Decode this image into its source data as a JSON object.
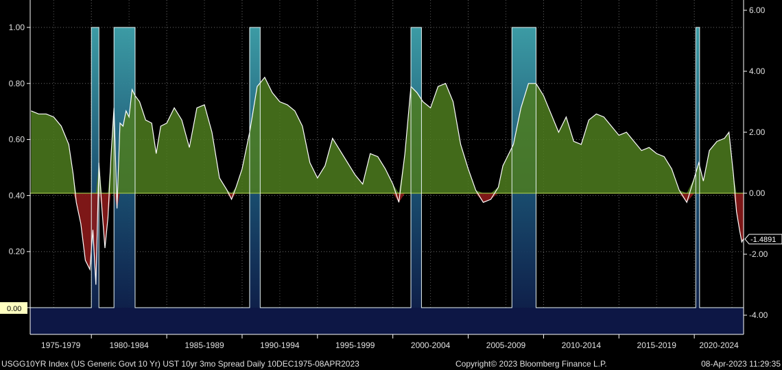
{
  "chart_data": {
    "type": "line",
    "title": "",
    "left_axis": {
      "range": [
        0.0,
        1.0
      ],
      "ticks": [
        "0.00",
        "0.20",
        "0.40",
        "0.60",
        "0.80",
        "1.00"
      ]
    },
    "right_axis": {
      "range": [
        -4.0,
        6.0
      ],
      "ticks": [
        "-4.00",
        "-2.00",
        "0.00",
        "2.00",
        "4.00",
        "6.00"
      ]
    },
    "x_range": [
      1975.94,
      2023.27
    ],
    "x_ticks": [
      "1975-1979",
      "1980-1984",
      "1985-1989",
      "1990-1994",
      "1995-1999",
      "2000-2004",
      "2005-2009",
      "2010-2014",
      "2015-2019",
      "2020-2024"
    ],
    "grid": true,
    "colors": {
      "positive": "#4e7d1e",
      "negative": "#8b1a1a",
      "line": "#ffffff",
      "recession_top": "#3fa3ad",
      "recession_bottom": "#0d1745",
      "zero_line": "#9ec04a",
      "badge": "#ffffc0"
    },
    "series": [
      {
        "name": "",
        "axis": "right",
        "x": [
          1976.0,
          1976.5,
          1977.0,
          1977.5,
          1978.0,
          1978.5,
          1978.8,
          1979.0,
          1979.3,
          1979.6,
          1979.9,
          1980.1,
          1980.3,
          1980.5,
          1980.7,
          1980.9,
          1981.1,
          1981.3,
          1981.5,
          1981.7,
          1981.9,
          1982.1,
          1982.3,
          1982.5,
          1982.7,
          1982.9,
          1983.2,
          1983.6,
          1984.0,
          1984.3,
          1984.6,
          1985.0,
          1985.5,
          1986.0,
          1986.5,
          1987.0,
          1987.5,
          1988.0,
          1988.5,
          1989.0,
          1989.3,
          1989.6,
          1990.0,
          1990.5,
          1991.0,
          1991.5,
          1992.0,
          1992.5,
          1993.0,
          1993.5,
          1994.0,
          1994.5,
          1995.0,
          1995.5,
          1996.0,
          1996.5,
          1997.0,
          1997.5,
          1998.0,
          1998.5,
          1999.0,
          1999.5,
          2000.0,
          2000.4,
          2000.8,
          2001.2,
          2001.6,
          2002.0,
          2002.5,
          2003.0,
          2003.5,
          2004.0,
          2004.5,
          2005.0,
          2005.5,
          2006.0,
          2006.5,
          2007.0,
          2007.3,
          2007.6,
          2008.0,
          2008.5,
          2009.0,
          2009.5,
          2010.0,
          2010.5,
          2011.0,
          2011.5,
          2012.0,
          2012.5,
          2013.0,
          2013.5,
          2014.0,
          2014.5,
          2015.0,
          2015.5,
          2016.0,
          2016.5,
          2017.0,
          2017.5,
          2018.0,
          2018.5,
          2019.0,
          2019.5,
          2020.0,
          2020.3,
          2020.6,
          2021.0,
          2021.5,
          2022.0,
          2022.3,
          2022.6,
          2022.8,
          2023.0,
          2023.15,
          2023.27
        ],
        "y": [
          2.7,
          2.6,
          2.6,
          2.5,
          2.2,
          1.6,
          0.6,
          -0.3,
          -1.0,
          -2.2,
          -2.5,
          -1.2,
          -3.0,
          1.0,
          -0.5,
          -1.8,
          -0.8,
          1.2,
          2.8,
          -0.5,
          2.3,
          2.2,
          2.7,
          2.5,
          3.4,
          3.2,
          3.0,
          2.4,
          2.3,
          1.3,
          2.2,
          2.3,
          2.8,
          2.4,
          1.5,
          2.8,
          2.9,
          2.0,
          0.5,
          0.1,
          -0.2,
          0.2,
          0.8,
          2.0,
          3.5,
          3.8,
          3.3,
          3.0,
          2.9,
          2.7,
          2.2,
          1.0,
          0.5,
          0.9,
          1.8,
          1.4,
          1.0,
          0.6,
          0.3,
          1.3,
          1.2,
          0.8,
          0.3,
          -0.3,
          1.3,
          3.5,
          3.3,
          3.0,
          2.8,
          3.5,
          3.6,
          3.0,
          1.6,
          0.8,
          0.1,
          -0.3,
          -0.2,
          0.2,
          0.9,
          1.2,
          1.6,
          2.8,
          3.6,
          3.6,
          3.2,
          2.6,
          2.0,
          2.5,
          1.7,
          1.6,
          2.4,
          2.6,
          2.5,
          2.2,
          1.9,
          2.0,
          1.7,
          1.4,
          1.5,
          1.3,
          1.2,
          0.8,
          0.1,
          -0.3,
          0.5,
          1.0,
          0.4,
          1.4,
          1.7,
          1.8,
          2.0,
          0.6,
          -0.6,
          -1.2,
          -1.6,
          -1.4891
        ]
      },
      {
        "name": "",
        "axis": "left",
        "type": "step",
        "x": [
          1975.94,
          1980.0,
          1980.0,
          1980.5,
          1980.5,
          1981.5,
          1981.5,
          1982.9,
          1982.9,
          1990.5,
          1990.5,
          1991.2,
          1991.2,
          2001.2,
          2001.2,
          2001.9,
          2001.9,
          2007.9,
          2007.9,
          2009.5,
          2009.5,
          2020.1,
          2020.1,
          2020.35,
          2020.35,
          2023.27
        ],
        "y": [
          0,
          0,
          1,
          1,
          0,
          0,
          1,
          1,
          0,
          0,
          1,
          1,
          0,
          0,
          1,
          1,
          0,
          0,
          1,
          1,
          0,
          0,
          1,
          1,
          0,
          0
        ]
      }
    ],
    "last_value_label": "-1.4891",
    "zero_badge": "0.00"
  },
  "footer": {
    "left": "USGG10YR Index (US Generic Govt 10 Yr) UST 10yr 3mo Spread  Daily 10DEC1975-08APR2023",
    "center": "Copyright© 2023 Bloomberg Finance L.P.",
    "right": "08-Apr-2023 11:29:35"
  }
}
